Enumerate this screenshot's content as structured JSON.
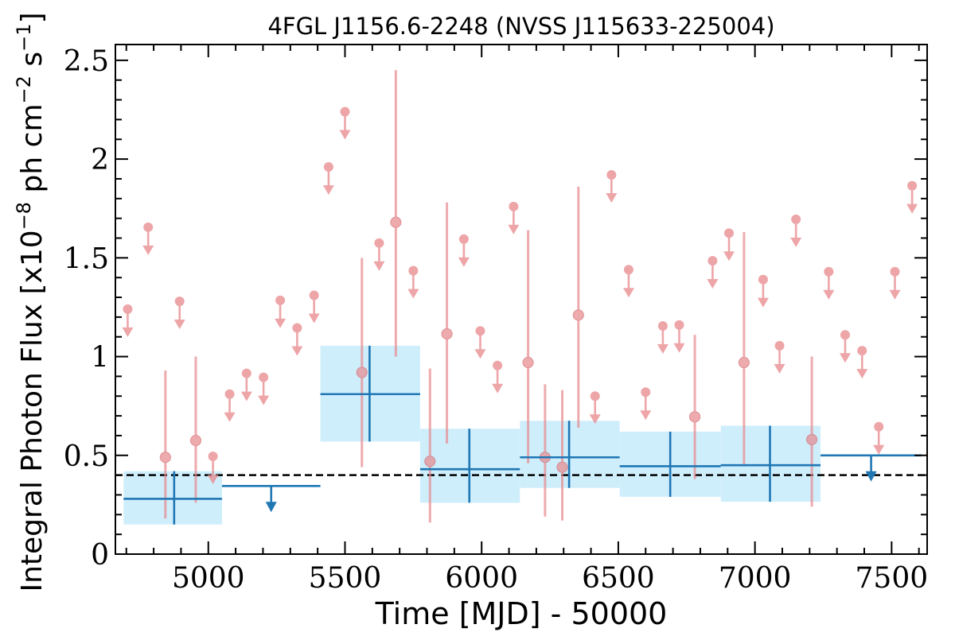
{
  "chart_data": {
    "type": "scatter",
    "title": "4FGL J1156.6-2248 (NVSS J115633-225004)",
    "xlabel": "Time [MJD] - 50000",
    "ylabel_parts": [
      "Integral Photon Flux [x10",
      "−8",
      " ph cm",
      "−2",
      " s",
      "−1",
      "]"
    ],
    "xlim": [
      4660,
      7630
    ],
    "ylim": [
      0,
      2.58
    ],
    "x_ticks": [
      5000,
      5500,
      6000,
      6500,
      7000,
      7500
    ],
    "x_tick_labels": [
      "5000",
      "5500",
      "6000",
      "6500",
      "7000",
      "7500"
    ],
    "y_ticks": [
      0,
      0.5,
      1,
      1.5,
      2,
      2.5
    ],
    "y_tick_labels": [
      "0",
      "0.5",
      "1",
      "1.5",
      "2",
      "2.5"
    ],
    "reference_level": 0.4,
    "colors": {
      "short_bin": "#e8888c",
      "long_bin": "#1f77b4",
      "long_bin_band": "#cfeefc",
      "reference": "#000000"
    },
    "short_bins": {
      "detections": [
        {
          "x": 4843,
          "y": 0.49,
          "ylo": 0.18,
          "yhi": 0.93
        },
        {
          "x": 4954,
          "y": 0.575,
          "ylo": 0.26,
          "yhi": 1.0
        },
        {
          "x": 5562,
          "y": 0.92,
          "ylo": 0.44,
          "yhi": 1.5
        },
        {
          "x": 5686,
          "y": 1.68,
          "ylo": 1.0,
          "yhi": 2.45
        },
        {
          "x": 5811,
          "y": 0.47,
          "ylo": 0.16,
          "yhi": 0.94
        },
        {
          "x": 5873,
          "y": 1.115,
          "ylo": 0.56,
          "yhi": 1.78
        },
        {
          "x": 6170,
          "y": 0.97,
          "ylo": 0.46,
          "yhi": 1.64
        },
        {
          "x": 6232,
          "y": 0.49,
          "ylo": 0.19,
          "yhi": 0.86
        },
        {
          "x": 6295,
          "y": 0.44,
          "ylo": 0.17,
          "yhi": 0.83
        },
        {
          "x": 6354,
          "y": 1.21,
          "ylo": 0.64,
          "yhi": 1.86
        },
        {
          "x": 6780,
          "y": 0.695,
          "ylo": 0.38,
          "yhi": 1.11
        },
        {
          "x": 6960,
          "y": 0.97,
          "ylo": 0.45,
          "yhi": 1.63
        },
        {
          "x": 7208,
          "y": 0.58,
          "ylo": 0.24,
          "yhi": 1.0
        }
      ],
      "upper_limits": [
        {
          "x": 4705,
          "y": 1.24
        },
        {
          "x": 4780,
          "y": 1.655
        },
        {
          "x": 4895,
          "y": 1.28
        },
        {
          "x": 5017,
          "y": 0.495
        },
        {
          "x": 5078,
          "y": 0.81
        },
        {
          "x": 5140,
          "y": 0.915
        },
        {
          "x": 5202,
          "y": 0.895
        },
        {
          "x": 5263,
          "y": 1.285
        },
        {
          "x": 5325,
          "y": 1.145
        },
        {
          "x": 5387,
          "y": 1.31
        },
        {
          "x": 5440,
          "y": 1.96
        },
        {
          "x": 5500,
          "y": 2.24
        },
        {
          "x": 5625,
          "y": 1.575
        },
        {
          "x": 5750,
          "y": 1.435
        },
        {
          "x": 5935,
          "y": 1.595
        },
        {
          "x": 5995,
          "y": 1.13
        },
        {
          "x": 6058,
          "y": 0.955
        },
        {
          "x": 6117,
          "y": 1.76
        },
        {
          "x": 6415,
          "y": 0.8
        },
        {
          "x": 6475,
          "y": 1.92
        },
        {
          "x": 6538,
          "y": 1.44
        },
        {
          "x": 6600,
          "y": 0.82
        },
        {
          "x": 6663,
          "y": 1.155
        },
        {
          "x": 6723,
          "y": 1.16
        },
        {
          "x": 6845,
          "y": 1.485
        },
        {
          "x": 6905,
          "y": 1.625
        },
        {
          "x": 7030,
          "y": 1.39
        },
        {
          "x": 7090,
          "y": 1.055
        },
        {
          "x": 7150,
          "y": 1.695
        },
        {
          "x": 7270,
          "y": 1.43
        },
        {
          "x": 7330,
          "y": 1.11
        },
        {
          "x": 7392,
          "y": 1.03
        },
        {
          "x": 7453,
          "y": 0.645
        },
        {
          "x": 7512,
          "y": 1.43
        },
        {
          "x": 7575,
          "y": 1.865
        }
      ]
    },
    "long_bins": {
      "detections": [
        {
          "x0": 4690,
          "x1": 5050,
          "xc": 4875,
          "y": 0.28,
          "ylo": 0.15,
          "yhi": 0.42
        },
        {
          "x0": 5410,
          "x1": 5775,
          "xc": 5590,
          "y": 0.81,
          "ylo": 0.57,
          "yhi": 1.055
        },
        {
          "x0": 5775,
          "x1": 6140,
          "xc": 5955,
          "y": 0.43,
          "ylo": 0.26,
          "yhi": 0.635
        },
        {
          "x0": 6140,
          "x1": 6505,
          "xc": 6320,
          "y": 0.49,
          "ylo": 0.335,
          "yhi": 0.675
        },
        {
          "x0": 6505,
          "x1": 6875,
          "xc": 6690,
          "y": 0.445,
          "ylo": 0.29,
          "yhi": 0.62
        },
        {
          "x0": 6875,
          "x1": 7240,
          "xc": 7055,
          "y": 0.45,
          "ylo": 0.265,
          "yhi": 0.65
        }
      ],
      "upper_limits": [
        {
          "x0": 5050,
          "x1": 5410,
          "xc": 5230,
          "y": 0.345
        },
        {
          "x0": 7240,
          "x1": 7610,
          "xc": 7425,
          "y": 0.5
        }
      ]
    }
  }
}
